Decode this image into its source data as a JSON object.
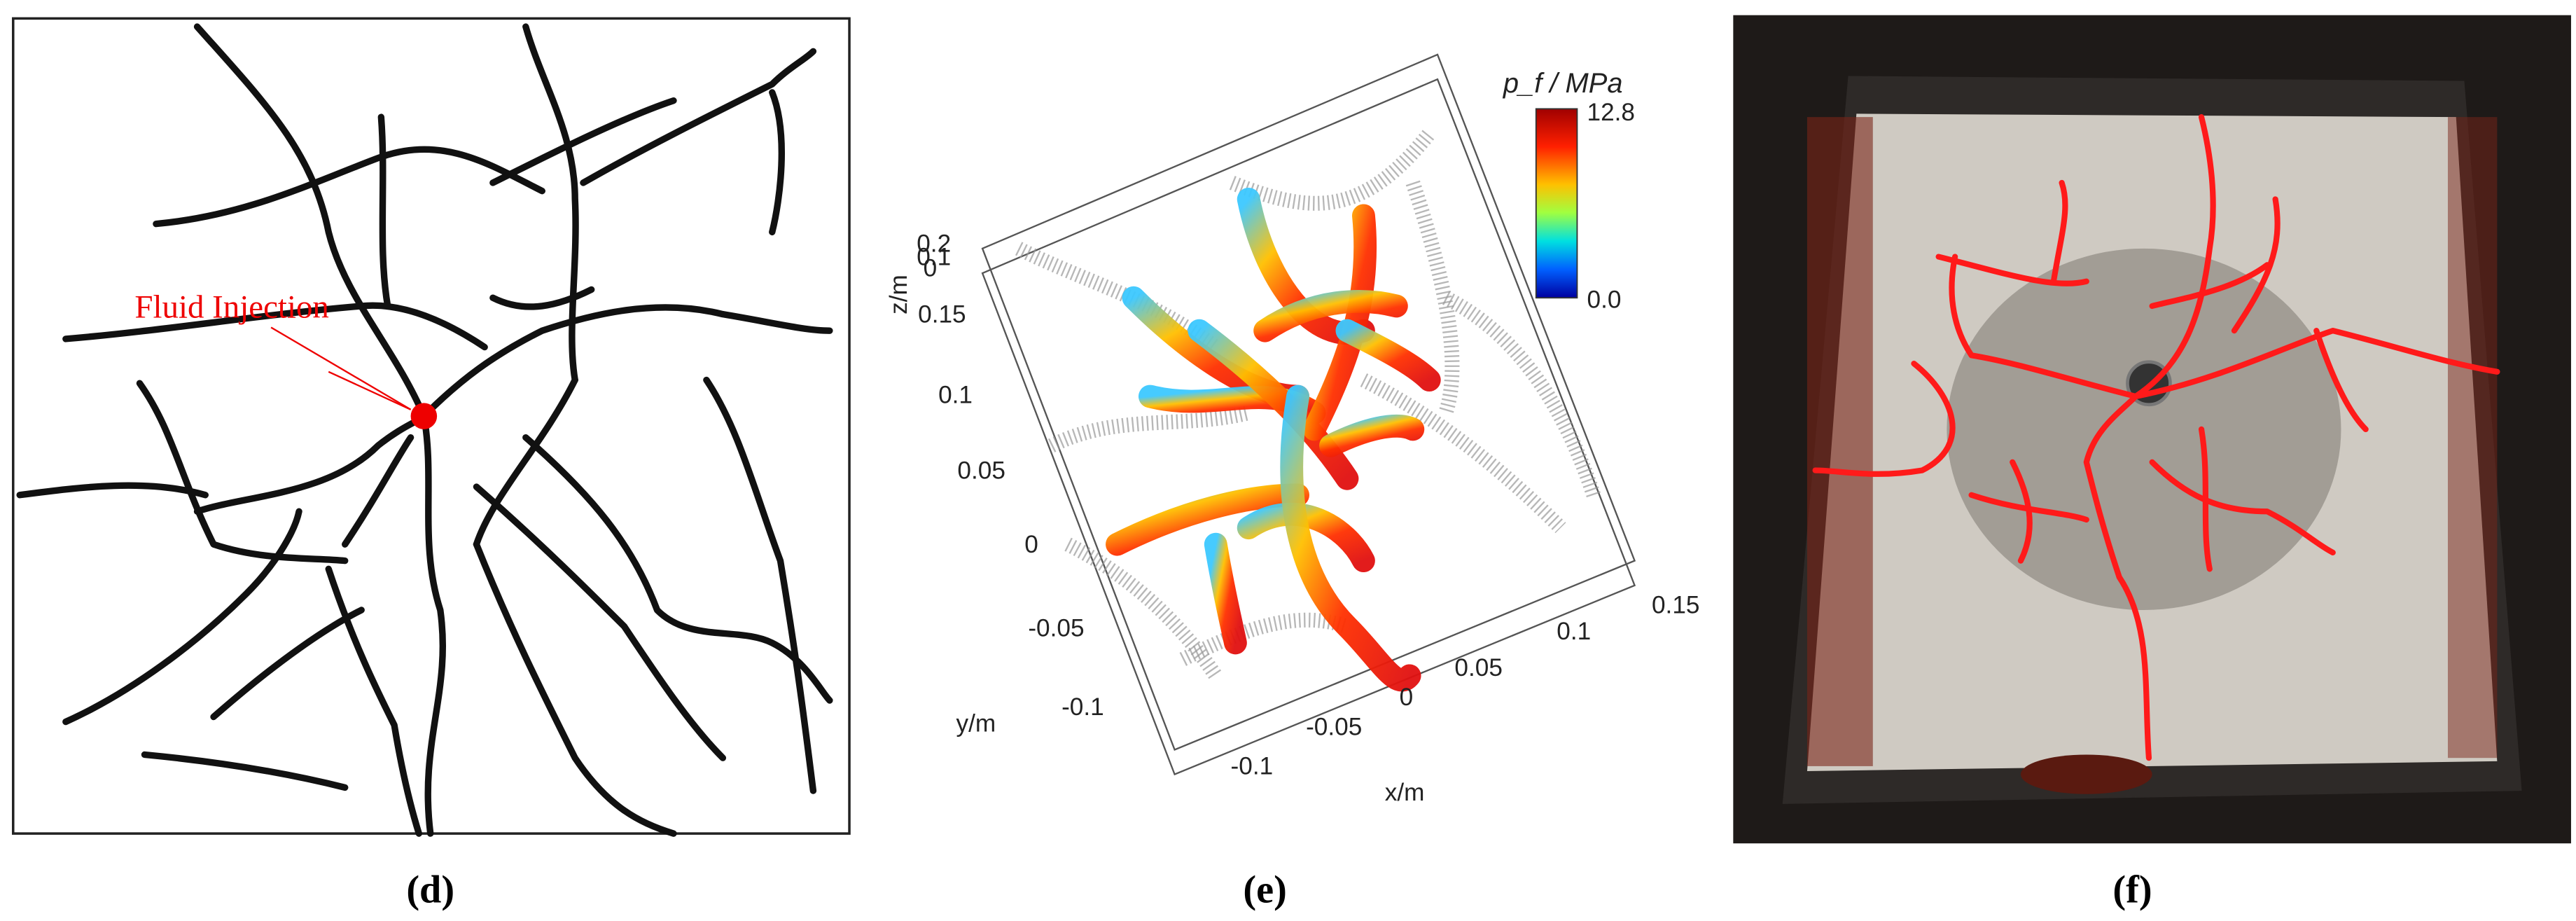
{
  "panels": [
    {
      "label": "(d)",
      "annotation": "Fluid Injection"
    },
    {
      "label": "(e)",
      "colorbar": {
        "title": "p_f / MPa",
        "max": "12.8",
        "min": "0.0"
      },
      "axes": {
        "z_label": "z/m",
        "z_ticks": [
          "0.2",
          "0.1",
          "0"
        ],
        "y_label": "y/m",
        "y_ticks": [
          "0.15",
          "0.1",
          "0.05",
          "0",
          "-0.05",
          "-0.1"
        ],
        "x_label": "x/m",
        "x_ticks": [
          "-0.1",
          "-0.05",
          "0",
          "0.05",
          "0.1",
          "0.15"
        ]
      }
    },
    {
      "label": "(f)"
    }
  ]
}
